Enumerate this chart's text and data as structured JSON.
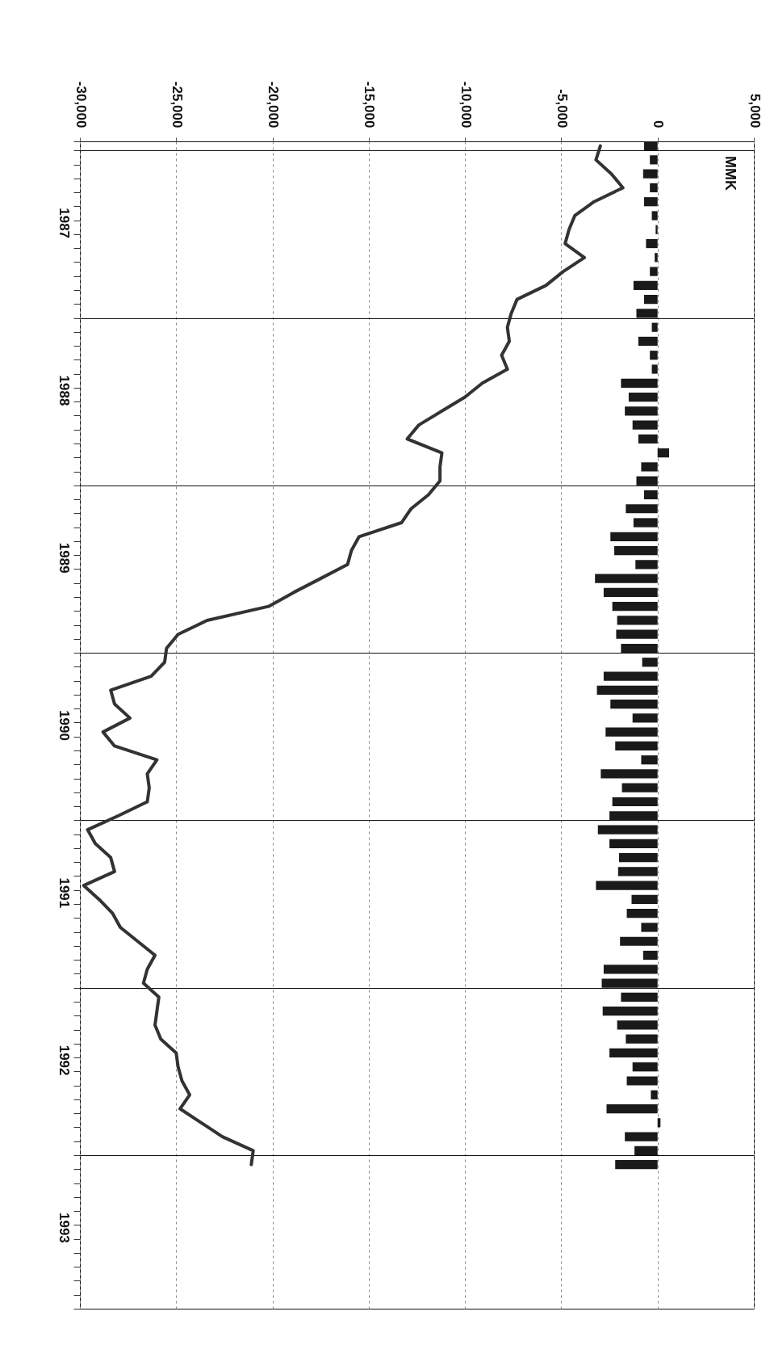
{
  "chart_data": {
    "type": "bar",
    "orientation": "horizontal",
    "categories": [
      null,
      null,
      null,
      null,
      null,
      null,
      "1987",
      null,
      null,
      null,
      null,
      null,
      null,
      null,
      null,
      null,
      null,
      null,
      "1988",
      null,
      null,
      null,
      null,
      null,
      null,
      null,
      null,
      null,
      null,
      null,
      "1989",
      null,
      null,
      null,
      null,
      null,
      null,
      null,
      null,
      null,
      null,
      null,
      "1990",
      null,
      null,
      null,
      null,
      null,
      null,
      null,
      null,
      null,
      null,
      null,
      "1991",
      null,
      null,
      null,
      null,
      null,
      null,
      null,
      null,
      null,
      null,
      null,
      "1992",
      null,
      null,
      null,
      null,
      null,
      null,
      null,
      null,
      null,
      null,
      null,
      "1993",
      null,
      null,
      null,
      null,
      null
    ],
    "series": [
      {
        "color": "#1a1a1a",
        "values": [
          -700,
          -400,
          -750,
          -400,
          -700,
          -300,
          -100,
          -600,
          -150,
          -400,
          -1250,
          -700,
          -1100,
          -300,
          -1000,
          -400,
          -300,
          -1900,
          -1500,
          -1700,
          -1300,
          -1000,
          600,
          -850,
          -1100,
          -700,
          -1650,
          -1250,
          -2450,
          -2250,
          -1150,
          -3250,
          -2800,
          -2350,
          -2100,
          -2150,
          -1900,
          -800,
          -2800,
          -3150,
          -2450,
          -1300,
          -2700,
          -2200,
          -850,
          -2950,
          -1850,
          -2350,
          -2500,
          -3100,
          -2500,
          -2000,
          -2050,
          -3200,
          -1350,
          -1600,
          -850,
          -1950,
          -750,
          -2800,
          -2900,
          -1900,
          -2850,
          -2100,
          -1650,
          -2500,
          -1300,
          -1600,
          -350,
          -2650,
          150,
          -1700,
          -1200,
          -2200,
          null,
          null,
          null,
          null,
          null,
          null,
          null,
          null,
          null,
          null
        ]
      },
      {
        "type": "line",
        "color": "#333333",
        "values": [
          -2970,
          -3200,
          -2400,
          -1800,
          -3300,
          -4300,
          -4600,
          -4800,
          -3800,
          -4900,
          -5800,
          -7300,
          -7600,
          -7800,
          -7700,
          -8100,
          -7800,
          -9100,
          -10000,
          -11200,
          -12400,
          -13000,
          -11200,
          -11300,
          -11300,
          -11900,
          -12800,
          -13300,
          -15500,
          -15900,
          -16100,
          -17500,
          -18900,
          -20200,
          -23400,
          -24900,
          -25500,
          -25600,
          -26300,
          -28400,
          -28200,
          -27400,
          -28800,
          -28200,
          -26000,
          -26500,
          -26400,
          -26500,
          -28000,
          -29600,
          -29200,
          -28400,
          -28200,
          -29800,
          -29000,
          -28300,
          -27900,
          -27000,
          -26100,
          -26500,
          -26700,
          -25900,
          -26000,
          -26100,
          -25800,
          -25000,
          -24900,
          -24700,
          -24300,
          -24800,
          -23700,
          -22600,
          -21000,
          -21100,
          null,
          null,
          null,
          null,
          null,
          null,
          null,
          null,
          null,
          null
        ]
      }
    ],
    "xlim": [
      -30000,
      5000
    ],
    "xticks": [
      {
        "value": -30000,
        "label": "-30,000"
      },
      {
        "value": -25000,
        "label": "-25,000"
      },
      {
        "value": -20000,
        "label": "-20,000"
      },
      {
        "value": -15000,
        "label": "-15,000"
      },
      {
        "value": -10000,
        "label": "-10,000"
      },
      {
        "value": -5000,
        "label": "-5,000"
      },
      0,
      {
        "value": 5000,
        "label": "5,000"
      }
    ],
    "grid": true,
    "annotations": [
      "MMK"
    ]
  }
}
